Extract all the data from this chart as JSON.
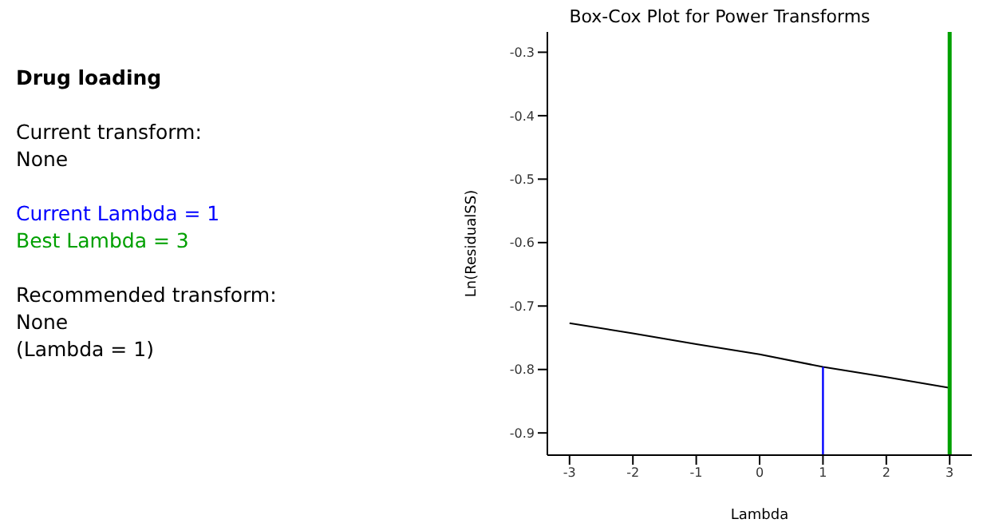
{
  "chart_data": {
    "type": "line",
    "title": "Box-Cox Plot for Power Transforms",
    "subtitle": "Drug loading",
    "xlabel": "Lambda",
    "ylabel": "Ln(ResidualSS)",
    "series": [
      {
        "color": "#000000",
        "x": [
          -3,
          -2,
          -1,
          0,
          1,
          2,
          3
        ],
        "values": [
          -0.727,
          -0.743,
          -0.76,
          -0.776,
          -0.796,
          -0.812,
          -0.829
        ]
      },
      {
        "name": "Current Lambda = 1",
        "color": "#0000ff",
        "x": [
          1,
          1
        ],
        "values": [
          -0.935,
          -0.796
        ]
      }
    ],
    "ref_lines": [
      {
        "axis": "x",
        "value": 3,
        "label": "Best Lambda = 3",
        "color": "#00a000"
      }
    ],
    "annotations": [
      "Current transform:\nNone",
      "Recommended transform:\nNone\n(Lambda = 1)"
    ],
    "xlim": [
      -3.35,
      3.35
    ],
    "xticks": [
      -3,
      -2,
      -1,
      0,
      1,
      2,
      3
    ],
    "ylim": [
      -0.935,
      -0.268
    ],
    "yticks": [
      -0.9,
      -0.8,
      -0.7,
      -0.6,
      -0.5,
      -0.4,
      -0.3
    ],
    "grid": false,
    "legend": false,
    "marker": "none",
    "line_style": "solid"
  }
}
